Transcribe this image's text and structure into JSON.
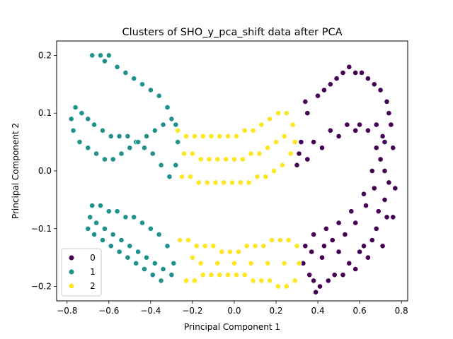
{
  "chart_data": {
    "type": "scatter",
    "title": "Clusters of SHO_y_pca_shift data after PCA",
    "xlabel": "Principal Component 1",
    "ylabel": "Principal Component 2",
    "xlim": [
      -0.85,
      0.83
    ],
    "ylim": [
      -0.225,
      0.225
    ],
    "xticks": [
      -0.8,
      -0.6,
      -0.4,
      -0.2,
      0.0,
      0.2,
      0.4,
      0.6,
      0.8
    ],
    "yticks": [
      -0.2,
      -0.1,
      0.0,
      0.1,
      0.2
    ],
    "xtick_labels": [
      "−0.8",
      "−0.6",
      "−0.4",
      "−0.2",
      "0.0",
      "0.2",
      "0.4",
      "0.6",
      "0.8"
    ],
    "ytick_labels": [
      "−0.2",
      "−0.1",
      "0.0",
      "0.1",
      "0.2"
    ],
    "grid": false,
    "legend_position": "lower-left",
    "series": [
      {
        "name": "0",
        "color": "#440154",
        "points": [
          [
            0.72,
            0.05
          ],
          [
            0.72,
            0.0
          ],
          [
            0.72,
            -0.05
          ],
          [
            0.73,
            -0.08
          ],
          [
            0.68,
            -0.1
          ],
          [
            0.62,
            -0.13
          ],
          [
            0.55,
            -0.16
          ],
          [
            0.48,
            -0.18
          ],
          [
            0.41,
            -0.2
          ],
          [
            0.36,
            -0.18
          ],
          [
            0.34,
            -0.13
          ],
          [
            0.38,
            -0.11
          ],
          [
            0.44,
            -0.1
          ],
          [
            0.5,
            -0.09
          ],
          [
            0.56,
            -0.07
          ],
          [
            0.62,
            -0.04
          ],
          [
            0.66,
            0.0
          ],
          [
            0.68,
            0.04
          ],
          [
            0.68,
            0.08
          ],
          [
            0.64,
            0.07
          ],
          [
            0.58,
            0.07
          ],
          [
            0.5,
            0.06
          ],
          [
            0.42,
            0.04
          ],
          [
            0.35,
            0.02
          ],
          [
            0.3,
            0.01
          ],
          [
            0.32,
            0.05
          ],
          [
            0.35,
            0.1
          ],
          [
            0.4,
            0.13
          ],
          [
            0.46,
            0.15
          ],
          [
            0.52,
            0.17
          ],
          [
            0.58,
            0.17
          ],
          [
            0.64,
            0.16
          ],
          [
            0.7,
            0.14
          ],
          [
            0.74,
            0.1
          ],
          [
            0.76,
            0.04
          ],
          [
            0.77,
            -0.03
          ],
          [
            0.76,
            -0.08
          ],
          [
            0.71,
            -0.13
          ],
          [
            0.64,
            -0.15
          ],
          [
            0.58,
            -0.17
          ],
          [
            0.52,
            -0.18
          ],
          [
            0.45,
            -0.19
          ],
          [
            0.39,
            -0.21
          ],
          [
            0.33,
            -0.16
          ],
          [
            0.37,
            -0.14
          ],
          [
            0.43,
            -0.13
          ],
          [
            0.47,
            -0.12
          ],
          [
            0.53,
            -0.11
          ],
          [
            0.58,
            -0.09
          ],
          [
            0.63,
            -0.06
          ],
          [
            0.67,
            -0.03
          ],
          [
            0.7,
            0.02
          ],
          [
            0.71,
            0.06
          ],
          [
            0.6,
            0.08
          ],
          [
            0.54,
            0.08
          ],
          [
            0.46,
            0.07
          ],
          [
            0.38,
            0.05
          ],
          [
            0.31,
            0.03
          ],
          [
            0.34,
            0.12
          ],
          [
            0.43,
            0.14
          ],
          [
            0.49,
            0.16
          ],
          [
            0.55,
            0.18
          ],
          [
            0.61,
            0.17
          ],
          [
            0.67,
            0.15
          ],
          [
            0.73,
            0.12
          ],
          [
            0.75,
            0.08
          ],
          [
            0.74,
            -0.02
          ],
          [
            0.69,
            -0.07
          ],
          [
            0.66,
            -0.12
          ],
          [
            0.6,
            -0.14
          ],
          [
            0.5,
            -0.14
          ],
          [
            0.42,
            -0.15
          ],
          [
            0.38,
            -0.19
          ]
        ]
      },
      {
        "name": "1",
        "color": "#21918c",
        "points": [
          [
            -0.68,
            0.2
          ],
          [
            -0.64,
            0.2
          ],
          [
            -0.62,
            0.19
          ],
          [
            -0.6,
            0.2
          ],
          [
            -0.56,
            0.18
          ],
          [
            -0.52,
            0.17
          ],
          [
            -0.48,
            0.16
          ],
          [
            -0.44,
            0.15
          ],
          [
            -0.4,
            0.14
          ],
          [
            -0.36,
            0.13
          ],
          [
            -0.32,
            0.11
          ],
          [
            -0.28,
            0.08
          ],
          [
            -0.27,
            0.05
          ],
          [
            -0.28,
            0.01
          ],
          [
            -0.31,
            -0.01
          ],
          [
            -0.35,
            0.01
          ],
          [
            -0.39,
            0.03
          ],
          [
            -0.43,
            0.04
          ],
          [
            -0.47,
            0.05
          ],
          [
            -0.51,
            0.06
          ],
          [
            -0.55,
            0.06
          ],
          [
            -0.59,
            0.06
          ],
          [
            -0.63,
            0.07
          ],
          [
            -0.67,
            0.08
          ],
          [
            -0.7,
            0.09
          ],
          [
            -0.73,
            0.1
          ],
          [
            -0.76,
            0.11
          ],
          [
            -0.78,
            0.09
          ],
          [
            -0.77,
            0.07
          ],
          [
            -0.74,
            0.05
          ],
          [
            -0.7,
            0.04
          ],
          [
            -0.66,
            0.03
          ],
          [
            -0.62,
            0.02
          ],
          [
            -0.58,
            0.02
          ],
          [
            -0.54,
            0.03
          ],
          [
            -0.5,
            0.04
          ],
          [
            -0.46,
            0.05
          ],
          [
            -0.42,
            0.06
          ],
          [
            -0.38,
            0.07
          ],
          [
            -0.34,
            0.08
          ],
          [
            -0.3,
            0.09
          ],
          [
            -0.68,
            -0.06
          ],
          [
            -0.64,
            -0.06
          ],
          [
            -0.6,
            -0.07
          ],
          [
            -0.56,
            -0.07
          ],
          [
            -0.52,
            -0.08
          ],
          [
            -0.48,
            -0.08
          ],
          [
            -0.44,
            -0.09
          ],
          [
            -0.4,
            -0.1
          ],
          [
            -0.36,
            -0.11
          ],
          [
            -0.32,
            -0.13
          ],
          [
            -0.29,
            -0.16
          ],
          [
            -0.3,
            -0.18
          ],
          [
            -0.34,
            -0.17
          ],
          [
            -0.38,
            -0.16
          ],
          [
            -0.42,
            -0.15
          ],
          [
            -0.46,
            -0.14
          ],
          [
            -0.5,
            -0.13
          ],
          [
            -0.54,
            -0.12
          ],
          [
            -0.58,
            -0.11
          ],
          [
            -0.62,
            -0.1
          ],
          [
            -0.66,
            -0.09
          ],
          [
            -0.69,
            -0.08
          ],
          [
            -0.7,
            -0.1
          ],
          [
            -0.67,
            -0.11
          ],
          [
            -0.63,
            -0.12
          ],
          [
            -0.59,
            -0.13
          ],
          [
            -0.55,
            -0.14
          ],
          [
            -0.51,
            -0.15
          ],
          [
            -0.47,
            -0.16
          ],
          [
            -0.43,
            -0.17
          ],
          [
            -0.39,
            -0.18
          ],
          [
            -0.35,
            -0.19
          ]
        ]
      },
      {
        "name": "2",
        "color": "#fde725",
        "points": [
          [
            -0.27,
            0.07
          ],
          [
            -0.23,
            0.06
          ],
          [
            -0.19,
            0.06
          ],
          [
            -0.15,
            0.06
          ],
          [
            -0.11,
            0.06
          ],
          [
            -0.07,
            0.06
          ],
          [
            -0.03,
            0.06
          ],
          [
            0.01,
            0.06
          ],
          [
            0.05,
            0.07
          ],
          [
            0.09,
            0.07
          ],
          [
            0.13,
            0.08
          ],
          [
            0.17,
            0.09
          ],
          [
            0.21,
            0.1
          ],
          [
            0.25,
            0.1
          ],
          [
            0.28,
            0.08
          ],
          [
            0.29,
            0.05
          ],
          [
            0.27,
            0.03
          ],
          [
            0.23,
            0.01
          ],
          [
            0.19,
            0.0
          ],
          [
            0.15,
            -0.01
          ],
          [
            0.11,
            -0.01
          ],
          [
            0.07,
            -0.02
          ],
          [
            0.03,
            -0.02
          ],
          [
            -0.01,
            -0.02
          ],
          [
            -0.05,
            -0.02
          ],
          [
            -0.09,
            -0.02
          ],
          [
            -0.13,
            -0.02
          ],
          [
            -0.17,
            -0.02
          ],
          [
            -0.21,
            -0.01
          ],
          [
            -0.25,
            -0.01
          ],
          [
            -0.24,
            0.03
          ],
          [
            -0.2,
            0.03
          ],
          [
            -0.16,
            0.02
          ],
          [
            -0.12,
            0.02
          ],
          [
            -0.08,
            0.02
          ],
          [
            -0.04,
            0.02
          ],
          [
            0.0,
            0.02
          ],
          [
            0.04,
            0.02
          ],
          [
            0.08,
            0.03
          ],
          [
            0.12,
            0.03
          ],
          [
            0.16,
            0.04
          ],
          [
            0.2,
            0.05
          ],
          [
            0.24,
            0.06
          ],
          [
            -0.26,
            -0.12
          ],
          [
            -0.22,
            -0.12
          ],
          [
            -0.18,
            -0.13
          ],
          [
            -0.14,
            -0.13
          ],
          [
            -0.1,
            -0.13
          ],
          [
            -0.06,
            -0.14
          ],
          [
            -0.02,
            -0.14
          ],
          [
            0.02,
            -0.14
          ],
          [
            0.06,
            -0.13
          ],
          [
            0.1,
            -0.13
          ],
          [
            0.14,
            -0.13
          ],
          [
            0.18,
            -0.12
          ],
          [
            0.22,
            -0.12
          ],
          [
            0.26,
            -0.12
          ],
          [
            0.3,
            -0.13
          ],
          [
            0.31,
            -0.16
          ],
          [
            0.29,
            -0.19
          ],
          [
            0.25,
            -0.2
          ],
          [
            0.21,
            -0.2
          ],
          [
            0.17,
            -0.19
          ],
          [
            0.13,
            -0.19
          ],
          [
            0.09,
            -0.19
          ],
          [
            0.05,
            -0.18
          ],
          [
            0.01,
            -0.18
          ],
          [
            -0.03,
            -0.18
          ],
          [
            -0.07,
            -0.18
          ],
          [
            -0.11,
            -0.18
          ],
          [
            -0.15,
            -0.18
          ],
          [
            -0.19,
            -0.19
          ],
          [
            -0.23,
            -0.19
          ],
          [
            -0.2,
            -0.15
          ],
          [
            -0.16,
            -0.16
          ],
          [
            -0.08,
            -0.16
          ],
          [
            0.0,
            -0.16
          ],
          [
            0.08,
            -0.16
          ],
          [
            0.16,
            -0.16
          ],
          [
            0.24,
            -0.16
          ]
        ]
      }
    ]
  }
}
